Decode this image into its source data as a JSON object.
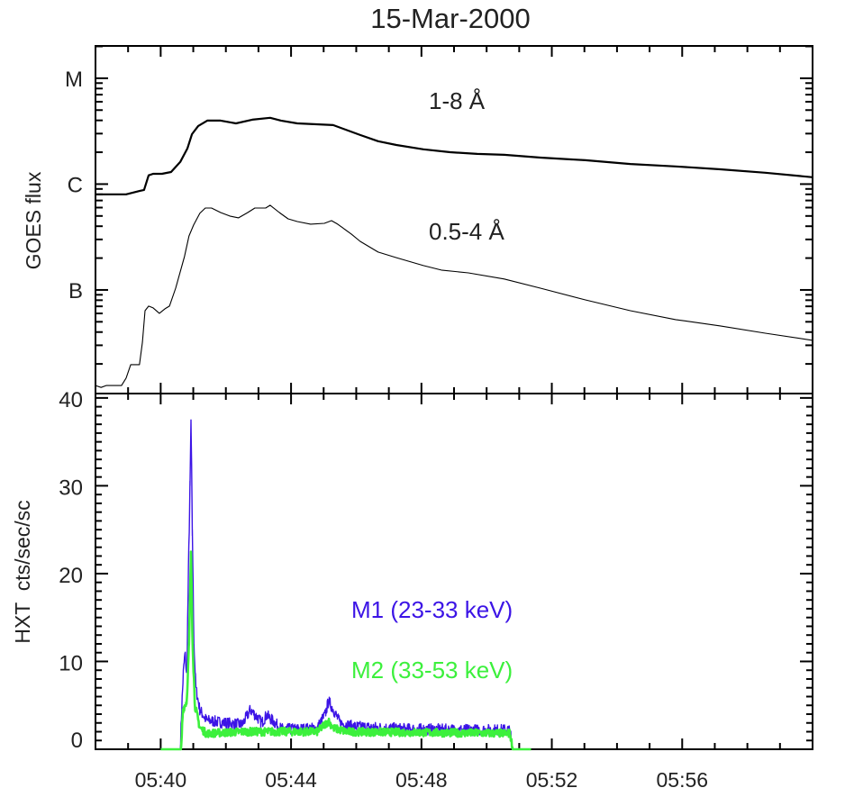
{
  "chart_data": [
    {
      "type": "line",
      "title": "15-Mar-2000",
      "ylabel": "GOES flux",
      "yscale": "log",
      "xlabel": "",
      "xlim_minutes_after_0500": [
        38,
        60
      ],
      "ylim": [
        1.05e-08,
        2.02e-05
      ],
      "y_tick_labels": [
        {
          "label": "M",
          "value": 1e-05
        },
        {
          "label": "C",
          "value": 1e-06
        },
        {
          "label": "B",
          "value": 1e-07
        }
      ],
      "series": [
        {
          "name": "1-8 Å",
          "color": "#000000",
          "x": [
            38.0,
            38.94,
            39.35,
            39.49,
            39.63,
            39.77,
            40.04,
            40.32,
            40.6,
            40.82,
            40.96,
            41.15,
            41.43,
            41.84,
            42.31,
            42.81,
            43.36,
            43.69,
            44.19,
            45.29,
            46.12,
            46.67,
            47.23,
            48.06,
            48.88,
            49.71,
            50.54,
            51.65,
            53.03,
            54.41,
            55.8,
            57.17,
            58.55,
            60.0
          ],
          "y": [
            8e-07,
            8e-07,
            8.6e-07,
            8.8e-07,
            1.21e-06,
            1.25e-06,
            1.25e-06,
            1.3e-06,
            1.62e-06,
            2.17e-06,
            2.96e-06,
            3.54e-06,
            3.98e-06,
            3.98e-06,
            3.75e-06,
            4.06e-06,
            4.23e-06,
            3.98e-06,
            3.75e-06,
            3.61e-06,
            2.91e-06,
            2.54e-06,
            2.34e-06,
            2.13e-06,
            2e-06,
            1.93e-06,
            1.89e-06,
            1.78e-06,
            1.68e-06,
            1.55e-06,
            1.47e-06,
            1.38e-06,
            1.28e-06,
            1.16e-06
          ]
        },
        {
          "name": "0.5-4 Å",
          "color": "#000000",
          "x": [
            38.0,
            38.17,
            38.33,
            38.8,
            38.94,
            39.08,
            39.35,
            39.44,
            39.52,
            39.63,
            39.77,
            39.96,
            40.13,
            40.27,
            40.46,
            40.73,
            40.87,
            41.01,
            41.2,
            41.37,
            41.56,
            41.84,
            42.12,
            42.39,
            42.67,
            42.89,
            43.22,
            43.36,
            43.64,
            43.91,
            44.19,
            44.6,
            45.02,
            45.24,
            45.43,
            45.85,
            46.12,
            46.67,
            47.23,
            48.06,
            48.61,
            49.44,
            50.54,
            51.65,
            53.03,
            54.41,
            55.8,
            57.17,
            58.55,
            60.0
          ],
          "y": [
            1.25e-08,
            1.2e-08,
            1.25e-08,
            1.25e-08,
            1.47e-08,
            1.97e-08,
            1.97e-08,
            3.21e-08,
            6.37e-08,
            7.03e-08,
            6.76e-08,
            6.01e-08,
            6.63e-08,
            7.03e-08,
            1.04e-07,
            2.07e-07,
            3.24e-07,
            4.1e-07,
            5.29e-07,
            5.94e-07,
            5.94e-07,
            5.39e-07,
            4.99e-07,
            4.8e-07,
            5.39e-07,
            5.94e-07,
            5.94e-07,
            6.31e-07,
            5.39e-07,
            4.7e-07,
            4.43e-07,
            4.18e-07,
            4.26e-07,
            4.52e-07,
            4.18e-07,
            3.37e-07,
            2.88e-07,
            2.28e-07,
            2.02e-07,
            1.7e-07,
            1.54e-07,
            1.45e-07,
            1.27e-07,
            1.04e-07,
            8.05e-08,
            6.37e-08,
            5.24e-08,
            4.57e-08,
            3.9e-08,
            3.34e-08
          ]
        }
      ]
    },
    {
      "type": "line",
      "ylabel": "HXT  cts/sec/sc",
      "xlim_minutes_after_0500": [
        38,
        60
      ],
      "ylim": [
        0,
        40.5
      ],
      "y_ticks": [
        0,
        10,
        20,
        30,
        40
      ],
      "x_tick_labels": [
        {
          "label": "05:40",
          "value": 40
        },
        {
          "label": "05:44",
          "value": 44
        },
        {
          "label": "05:48",
          "value": 48
        },
        {
          "label": "05:52",
          "value": 52
        },
        {
          "label": "05:56",
          "value": 56
        }
      ],
      "series": [
        {
          "name": "M1 (23-33 keV)",
          "color": "#3c14e6",
          "x": [
            40,
            40.6,
            40.65,
            40.7,
            40.75,
            40.8,
            40.85,
            40.9,
            40.93,
            40.97,
            41.02,
            41.08,
            41.2,
            41.4,
            42.0,
            42.5,
            42.65,
            42.75,
            42.95,
            43.1,
            43.25,
            43.45,
            43.7,
            44.3,
            44.8,
            45.05,
            45.15,
            45.3,
            45.5,
            45.9,
            47.5,
            49.5,
            50.72,
            50.78,
            51.37
          ],
          "y": [
            0,
            0,
            5,
            9,
            11,
            8,
            20,
            30,
            37.5,
            25,
            12,
            7,
            4.5,
            3.3,
            3,
            2.8,
            3.8,
            4.5,
            3.7,
            3.0,
            3.9,
            3.2,
            2.3,
            2.3,
            2.4,
            4.0,
            5.5,
            4.5,
            3.0,
            2.6,
            2.3,
            2.2,
            2.2,
            0,
            0
          ]
        },
        {
          "name": "M2 (33-53 keV)",
          "color": "#3cf03c",
          "x": [
            40,
            40.63,
            40.68,
            40.8,
            40.87,
            40.93,
            40.98,
            41.05,
            41.2,
            41.4,
            42.5,
            44.8,
            45.15,
            45.3,
            45.7,
            50.72,
            50.8,
            51.37
          ],
          "y": [
            0,
            0,
            4.5,
            5.5,
            12,
            22.5,
            12,
            5,
            2.5,
            1.8,
            2.0,
            2.0,
            3.2,
            2.4,
            2.0,
            1.8,
            0,
            0
          ]
        }
      ]
    }
  ]
}
